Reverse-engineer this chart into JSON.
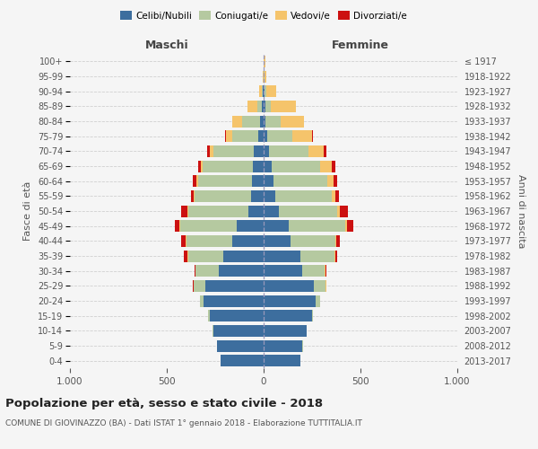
{
  "age_groups": [
    "0-4",
    "5-9",
    "10-14",
    "15-19",
    "20-24",
    "25-29",
    "30-34",
    "35-39",
    "40-44",
    "45-49",
    "50-54",
    "55-59",
    "60-64",
    "65-69",
    "70-74",
    "75-79",
    "80-84",
    "85-89",
    "90-94",
    "95-99",
    "100+"
  ],
  "birth_years": [
    "2013-2017",
    "2008-2012",
    "2003-2007",
    "1998-2002",
    "1993-1997",
    "1988-1992",
    "1983-1987",
    "1978-1982",
    "1973-1977",
    "1968-1972",
    "1963-1967",
    "1958-1962",
    "1953-1957",
    "1948-1952",
    "1943-1947",
    "1938-1942",
    "1933-1937",
    "1928-1932",
    "1923-1927",
    "1918-1922",
    "≤ 1917"
  ],
  "colors": {
    "celibi": "#3d6e9e",
    "coniugati": "#b5c9a0",
    "vedovi": "#f5c46b",
    "divorziati": "#cc1111"
  },
  "males": {
    "celibi": [
      220,
      240,
      260,
      280,
      310,
      300,
      230,
      210,
      160,
      140,
      80,
      65,
      60,
      55,
      50,
      30,
      20,
      8,
      5,
      2,
      2
    ],
    "coniugati": [
      2,
      2,
      2,
      5,
      20,
      60,
      120,
      180,
      240,
      290,
      310,
      290,
      280,
      260,
      210,
      130,
      90,
      25,
      5,
      0,
      0
    ],
    "vedovi": [
      0,
      0,
      0,
      0,
      0,
      2,
      2,
      5,
      5,
      5,
      5,
      5,
      8,
      8,
      20,
      35,
      50,
      50,
      15,
      2,
      0
    ],
    "divorziati": [
      0,
      0,
      0,
      0,
      0,
      5,
      5,
      15,
      20,
      25,
      30,
      15,
      20,
      15,
      10,
      5,
      0,
      0,
      0,
      0,
      0
    ]
  },
  "females": {
    "celibi": [
      190,
      200,
      220,
      250,
      270,
      260,
      200,
      190,
      140,
      130,
      80,
      60,
      50,
      40,
      30,
      20,
      10,
      8,
      5,
      2,
      2
    ],
    "coniugati": [
      2,
      2,
      2,
      5,
      20,
      60,
      115,
      175,
      230,
      290,
      300,
      290,
      280,
      250,
      200,
      130,
      80,
      30,
      10,
      2,
      0
    ],
    "vedovi": [
      0,
      0,
      0,
      0,
      0,
      2,
      5,
      5,
      5,
      10,
      15,
      20,
      30,
      60,
      80,
      100,
      120,
      130,
      50,
      10,
      5
    ],
    "divorziati": [
      0,
      0,
      0,
      0,
      0,
      2,
      5,
      10,
      20,
      35,
      40,
      18,
      20,
      20,
      15,
      5,
      0,
      0,
      0,
      0,
      0
    ]
  },
  "title": "Popolazione per età, sesso e stato civile - 2018",
  "subtitle": "COMUNE DI GIOVINAZZO (BA) - Dati ISTAT 1° gennaio 2018 - Elaborazione TUTTITALIA.IT",
  "xlabel_left": "Maschi",
  "xlabel_right": "Femmine",
  "ylabel_left": "Fasce di età",
  "ylabel_right": "Anni di nascita",
  "xlim": 1000,
  "legend_labels": [
    "Celibi/Nubili",
    "Coniugati/e",
    "Vedovi/e",
    "Divorziati/e"
  ],
  "bg_color": "#f5f5f5",
  "grid_color": "#cccccc"
}
